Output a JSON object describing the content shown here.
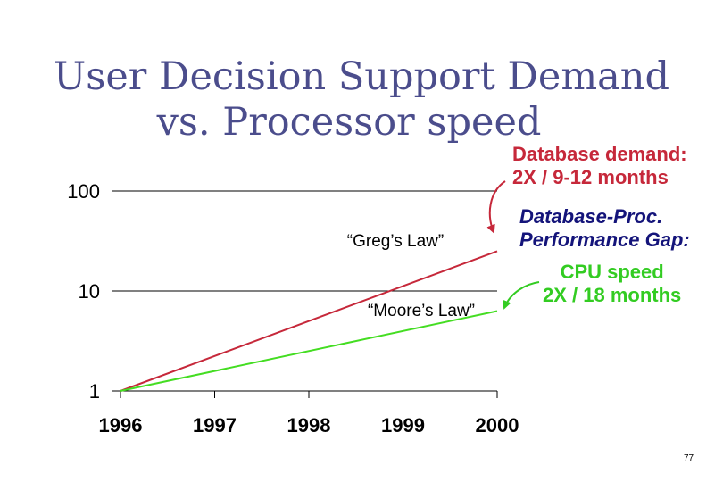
{
  "title_line1": "User Decision Support Demand",
  "title_line2": "vs. Processor speed",
  "annotations": {
    "db_demand_1": "Database demand:",
    "db_demand_2": "2X / 9-12 months",
    "gap_1": "Database-Proc.",
    "gap_2": "Performance Gap:",
    "cpu_1": "CPU speed",
    "cpu_2": "2X /  18 months"
  },
  "page_number": "77",
  "chart_data": {
    "type": "line",
    "x": [
      1996,
      2000
    ],
    "x_ticks": [
      "1996",
      "1997",
      "1998",
      "1999",
      "2000"
    ],
    "y_ticks": [
      "1",
      "10",
      "100"
    ],
    "yscale": "log",
    "ylim": [
      1,
      100
    ],
    "grid": "horizontal",
    "series": [
      {
        "name": "“Greg’s Law”",
        "color": "#c6283a",
        "x": [
          1996,
          2000
        ],
        "values": [
          1,
          25
        ]
      },
      {
        "name": "“Moore’s Law”",
        "color": "#44dd22",
        "x": [
          1996,
          2000
        ],
        "values": [
          1,
          6.3
        ]
      }
    ]
  }
}
